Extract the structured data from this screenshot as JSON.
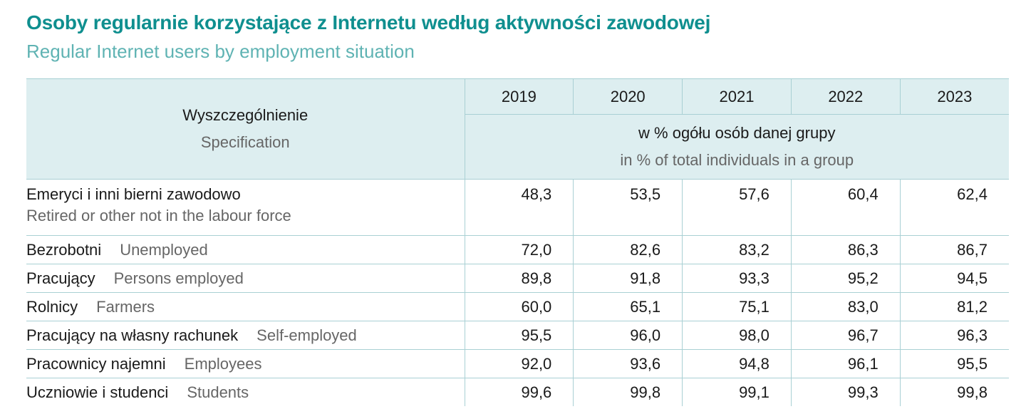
{
  "title": "Osoby regularnie korzystające z Internetu według aktywności zawodowej",
  "subtitle": "Regular Internet users by employment situation",
  "header": {
    "spec_pl": "Wyszczególnienie",
    "spec_en": "Specification",
    "years": [
      "2019",
      "2020",
      "2021",
      "2022",
      "2023"
    ],
    "unit_pl": "w % ogółu osób danej grupy",
    "unit_en": "in % of total individuals in a group"
  },
  "rows": [
    {
      "pl": "Emeryci i inni bierni zawodowo",
      "en": "Retired or other not in the labour force",
      "values": [
        "48,3",
        "53,5",
        "57,6",
        "60,4",
        "62,4"
      ]
    },
    {
      "pl": "Bezrobotni",
      "en": "Unemployed",
      "values": [
        "72,0",
        "82,6",
        "83,2",
        "86,3",
        "86,7"
      ]
    },
    {
      "pl": "Pracujący",
      "en": "Persons employed",
      "values": [
        "89,8",
        "91,8",
        "93,3",
        "95,2",
        "94,5"
      ]
    },
    {
      "pl": "Rolnicy",
      "en": "Farmers",
      "values": [
        "60,0",
        "65,1",
        "75,1",
        "83,0",
        "81,2"
      ]
    },
    {
      "pl": "Pracujący na własny rachunek",
      "en": "Self-employed",
      "values": [
        "95,5",
        "96,0",
        "98,0",
        "96,7",
        "96,3"
      ]
    },
    {
      "pl": "Pracownicy najemni",
      "en": "Employees",
      "values": [
        "92,0",
        "93,6",
        "94,8",
        "96,1",
        "95,5"
      ]
    },
    {
      "pl": "Uczniowie i studenci",
      "en": "Students",
      "values": [
        "99,6",
        "99,8",
        "99,1",
        "99,3",
        "99,8"
      ]
    }
  ]
}
